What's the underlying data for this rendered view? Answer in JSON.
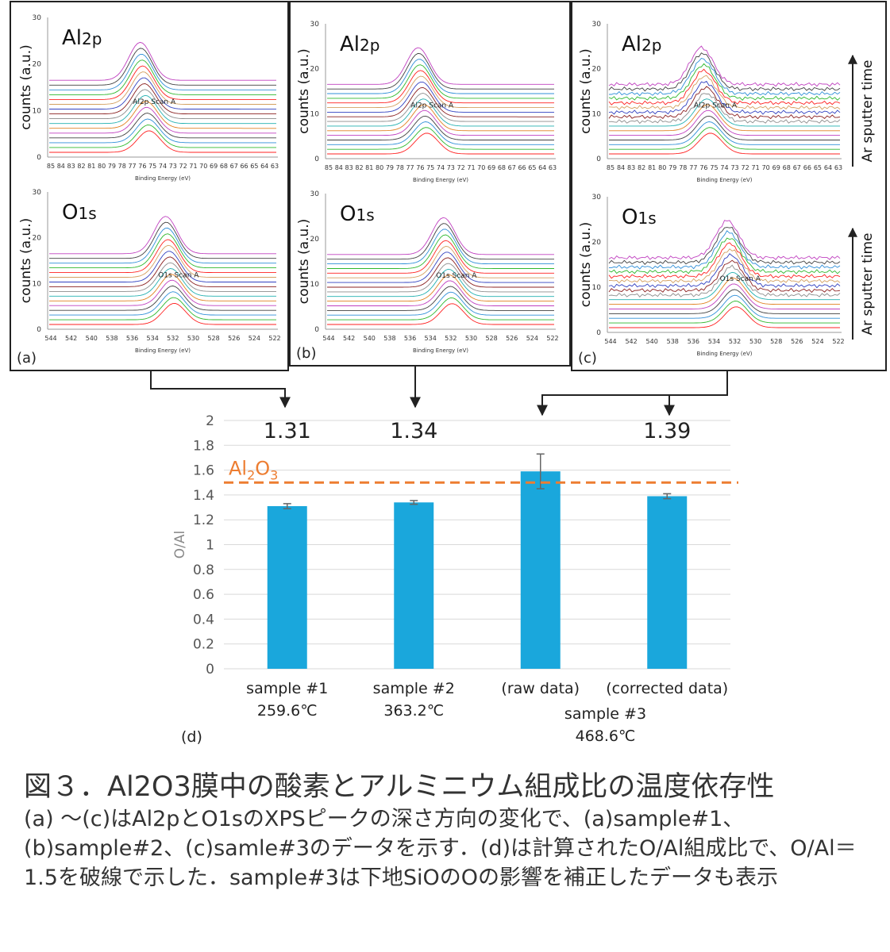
{
  "colors": {
    "bar": "#1aa7dc",
    "reference_line": "#ed7d31",
    "spectra": [
      "#ff2020",
      "#2eb82e",
      "#2f8fd8",
      "#404040",
      "#c040c0",
      "#e08020",
      "#20b0b0",
      "#8c8c8c",
      "#8b2020",
      "#3040c0",
      "#d4a060"
    ]
  },
  "panels": [
    {
      "id": "a",
      "label": "(a)",
      "plots": [
        {
          "element": "Al",
          "sub": "2p",
          "ylabel": "counts (a.u.)",
          "xlabel": "Binding Energy (eV)",
          "scan_label": "Al2p Scan A",
          "yticks": [
            "0",
            "10",
            "20",
            "30"
          ],
          "xticks": [
            "85",
            "84",
            "83",
            "82",
            "81",
            "80",
            "79",
            "78",
            "77",
            "76",
            "75",
            "74",
            "73",
            "72",
            "71",
            "70",
            "69",
            "68",
            "67",
            "66",
            "65",
            "64",
            "63"
          ]
        },
        {
          "element": "O",
          "sub": "1s",
          "ylabel": "counts (a.u.)",
          "xlabel": "Binding Energy (eV)",
          "scan_label": "O1s Scan A",
          "yticks": [
            "0",
            "10",
            "20",
            "30"
          ],
          "xticks": [
            "544",
            "542",
            "540",
            "538",
            "536",
            "534",
            "532",
            "530",
            "528",
            "526",
            "524",
            "522"
          ]
        }
      ]
    },
    {
      "id": "b",
      "label": "(b)",
      "plots": [
        {
          "element": "Al",
          "sub": "2p",
          "ylabel": "counts (a.u.)",
          "xlabel": "Binding Energy (eV)",
          "scan_label": "Al2p Scan A",
          "yticks": [
            "0",
            "10",
            "20",
            "30"
          ],
          "xticks": [
            "85",
            "84",
            "83",
            "82",
            "81",
            "80",
            "79",
            "78",
            "77",
            "76",
            "75",
            "74",
            "73",
            "72",
            "71",
            "70",
            "69",
            "68",
            "67",
            "66",
            "65",
            "64",
            "63"
          ]
        },
        {
          "element": "O",
          "sub": "1s",
          "ylabel": "counts (a.u.)",
          "xlabel": "Binding Energy (eV)",
          "scan_label": "O1s Scan A",
          "yticks": [
            "0",
            "10",
            "20",
            "30"
          ],
          "xticks": [
            "544",
            "542",
            "540",
            "538",
            "536",
            "534",
            "532",
            "530",
            "528",
            "526",
            "524",
            "522"
          ]
        }
      ]
    },
    {
      "id": "c",
      "label": "(c)",
      "plots": [
        {
          "element": "Al",
          "sub": "2p",
          "ylabel": "counts (a.u.)",
          "xlabel": "Binding Energy (eV)",
          "scan_label": "Al2p Scan A",
          "yticks": [
            "0",
            "10",
            "20",
            "30"
          ],
          "xticks": [
            "85",
            "84",
            "83",
            "82",
            "81",
            "80",
            "79",
            "78",
            "77",
            "76",
            "75",
            "74",
            "73",
            "72",
            "71",
            "70",
            "69",
            "68",
            "67",
            "66",
            "65",
            "64",
            "63"
          ]
        },
        {
          "element": "O",
          "sub": "1s",
          "ylabel": "counts (a.u.)",
          "xlabel": "Binding Energy (eV)",
          "scan_label": "O1s Scan A",
          "yticks": [
            "0",
            "10",
            "20",
            "30"
          ],
          "xticks": [
            "544",
            "542",
            "540",
            "538",
            "536",
            "534",
            "532",
            "530",
            "528",
            "526",
            "524",
            "522"
          ]
        }
      ]
    }
  ],
  "sputter_label": "Ar sputter time",
  "chart_data": {
    "type": "bar",
    "panel_label": "(d)",
    "ylabel": "O/Al",
    "ylim": [
      0,
      2
    ],
    "yticks": [
      0,
      0.2,
      0.4,
      0.6,
      0.8,
      1,
      1.2,
      1.4,
      1.6,
      1.8,
      2
    ],
    "grid": true,
    "bars": [
      {
        "value": 1.31,
        "error": 0.02,
        "label_lines": [
          "sample #1",
          "259.6℃"
        ],
        "value_label": "1.31"
      },
      {
        "value": 1.34,
        "error": 0.015,
        "label_lines": [
          "sample #2",
          "363.2℃"
        ],
        "value_label": "1.34"
      },
      {
        "value": 1.59,
        "error": 0.14,
        "label_lines": [
          "(raw data)"
        ],
        "value_label": ""
      },
      {
        "value": 1.39,
        "error": 0.02,
        "label_lines": [
          "(corrected data)"
        ],
        "value_label": "1.39"
      }
    ],
    "group_label_lines": [
      "sample #3",
      "468.6℃"
    ],
    "reference": {
      "value": 1.5,
      "label_base": "Al",
      "label_sub1": "2",
      "label_mid": "O",
      "label_sub2": "3"
    }
  },
  "caption": {
    "title": "図３．Al2O3膜中の酸素とアルミニウム組成比の温度依存性",
    "body": "(a) ～(c)はAl2pとO1sのXPSピークの深さ方向の変化で、(a)sample#1、(b)sample#2、(c)samle#3のデータを示す．(d)は計算されたO/Al組成比で、O/Al＝1.5を破線で示した．sample#3は下地SiOのOの影響を補正したデータも表示"
  }
}
